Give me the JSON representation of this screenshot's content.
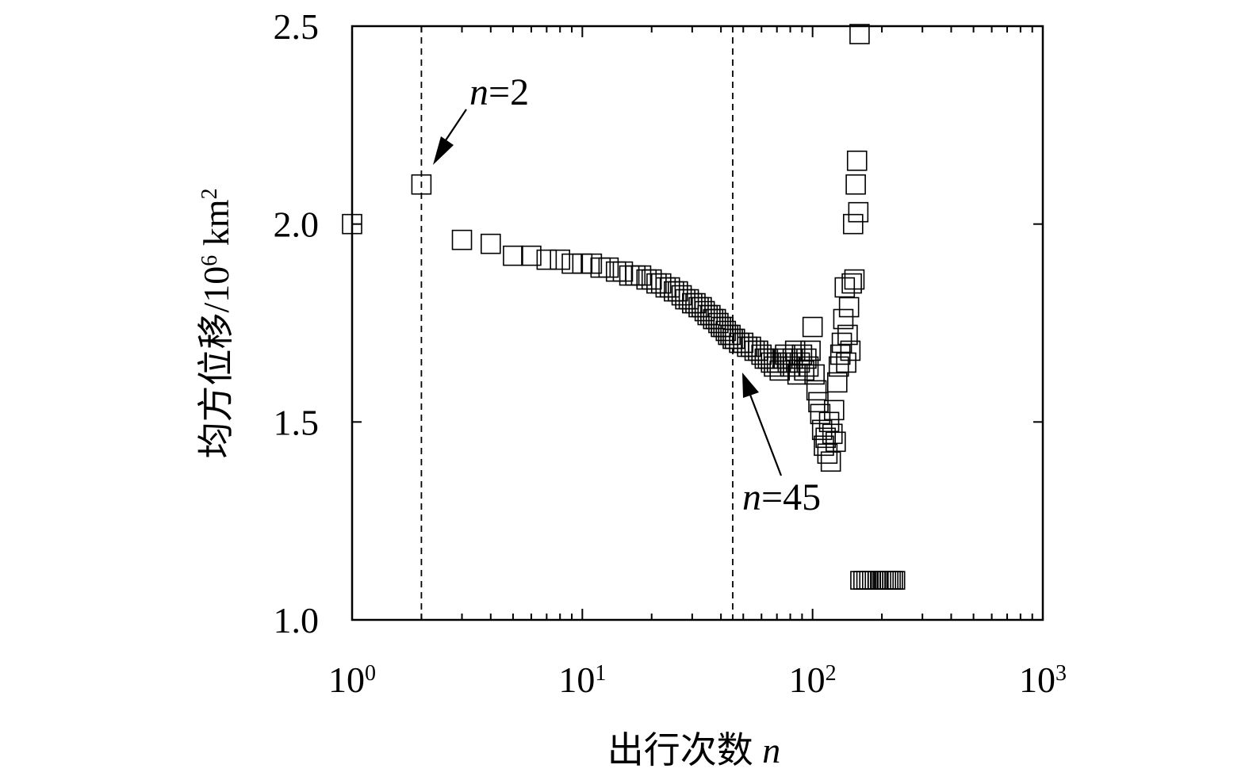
{
  "chart_data": {
    "type": "scatter",
    "xlabel_main": "出行次数 ",
    "xlabel_var": "n",
    "ylabel_main": "均方位移/10",
    "ylabel_exp": "6",
    "ylabel_unit": " km",
    "ylabel_unit_exp": "2",
    "x_scale": "log",
    "xlim": [
      1,
      1000
    ],
    "ylim": [
      1.0,
      2.5
    ],
    "x_ticks": [
      {
        "base": "10",
        "exp": "0",
        "value": 1
      },
      {
        "base": "10",
        "exp": "1",
        "value": 10
      },
      {
        "base": "10",
        "exp": "2",
        "value": 100
      },
      {
        "base": "10",
        "exp": "3",
        "value": 1000
      }
    ],
    "y_ticks": [
      {
        "label": "1.0",
        "value": 1.0
      },
      {
        "label": "1.5",
        "value": 1.5
      },
      {
        "label": "2.0",
        "value": 2.0
      },
      {
        "label": "2.5",
        "value": 2.5
      }
    ],
    "marker": "open-square",
    "grid": false,
    "reference_lines": [
      {
        "x": 2,
        "style": "dashed"
      },
      {
        "x": 45,
        "style": "dashed"
      }
    ],
    "annotations": [
      {
        "var": "n",
        "text": "=2",
        "x": 2,
        "y": 2.1
      },
      {
        "var": "n",
        "text": "=45",
        "x": 45,
        "y": 1.69
      }
    ],
    "points": [
      [
        1,
        2.0
      ],
      [
        2,
        2.1
      ],
      [
        3,
        1.96
      ],
      [
        4,
        1.95
      ],
      [
        5,
        1.92
      ],
      [
        6,
        1.92
      ],
      [
        7,
        1.91
      ],
      [
        8,
        1.91
      ],
      [
        9,
        1.9
      ],
      [
        10,
        1.9
      ],
      [
        11,
        1.9
      ],
      [
        12,
        1.89
      ],
      [
        13,
        1.89
      ],
      [
        14,
        1.88
      ],
      [
        15,
        1.88
      ],
      [
        16,
        1.87
      ],
      [
        17,
        1.87
      ],
      [
        18,
        1.87
      ],
      [
        19,
        1.86
      ],
      [
        20,
        1.86
      ],
      [
        21,
        1.85
      ],
      [
        22,
        1.85
      ],
      [
        23,
        1.84
      ],
      [
        24,
        1.84
      ],
      [
        25,
        1.83
      ],
      [
        26,
        1.83
      ],
      [
        27,
        1.82
      ],
      [
        28,
        1.81
      ],
      [
        29,
        1.81
      ],
      [
        30,
        1.8
      ],
      [
        31,
        1.8
      ],
      [
        32,
        1.79
      ],
      [
        33,
        1.79
      ],
      [
        34,
        1.78
      ],
      [
        35,
        1.77
      ],
      [
        36,
        1.77
      ],
      [
        37,
        1.76
      ],
      [
        38,
        1.76
      ],
      [
        39,
        1.75
      ],
      [
        40,
        1.74
      ],
      [
        41,
        1.74
      ],
      [
        42,
        1.73
      ],
      [
        43,
        1.72
      ],
      [
        44,
        1.72
      ],
      [
        45,
        1.71
      ],
      [
        46,
        1.71
      ],
      [
        48,
        1.7
      ],
      [
        50,
        1.7
      ],
      [
        52,
        1.69
      ],
      [
        54,
        1.69
      ],
      [
        56,
        1.68
      ],
      [
        58,
        1.68
      ],
      [
        60,
        1.67
      ],
      [
        62,
        1.66
      ],
      [
        64,
        1.66
      ],
      [
        66,
        1.65
      ],
      [
        68,
        1.64
      ],
      [
        70,
        1.65
      ],
      [
        72,
        1.63
      ],
      [
        74,
        1.66
      ],
      [
        76,
        1.67
      ],
      [
        78,
        1.65
      ],
      [
        80,
        1.64
      ],
      [
        82,
        1.66
      ],
      [
        84,
        1.68
      ],
      [
        86,
        1.62
      ],
      [
        88,
        1.65
      ],
      [
        90,
        1.67
      ],
      [
        92,
        1.63
      ],
      [
        94,
        1.66
      ],
      [
        96,
        1.64
      ],
      [
        98,
        1.68
      ],
      [
        100,
        1.74
      ],
      [
        102,
        1.62
      ],
      [
        104,
        1.58
      ],
      [
        106,
        1.55
      ],
      [
        108,
        1.52
      ],
      [
        110,
        1.48
      ],
      [
        112,
        1.44
      ],
      [
        114,
        1.46
      ],
      [
        116,
        1.42
      ],
      [
        118,
        1.5
      ],
      [
        120,
        1.4
      ],
      [
        122,
        1.47
      ],
      [
        124,
        1.53
      ],
      [
        126,
        1.45
      ],
      [
        128,
        1.6
      ],
      [
        130,
        1.64
      ],
      [
        132,
        1.67
      ],
      [
        134,
        1.7
      ],
      [
        136,
        1.76
      ],
      [
        138,
        1.84
      ],
      [
        140,
        1.65
      ],
      [
        142,
        1.72
      ],
      [
        144,
        1.79
      ],
      [
        146,
        1.68
      ],
      [
        148,
        1.85
      ],
      [
        150,
        2.0
      ],
      [
        152,
        1.86
      ],
      [
        154,
        2.1
      ],
      [
        156,
        2.16
      ],
      [
        158,
        2.03
      ],
      [
        160,
        2.48
      ],
      [
        160,
        1.1
      ],
      [
        165,
        1.1
      ],
      [
        170,
        1.1
      ],
      [
        175,
        1.1
      ],
      [
        180,
        1.1
      ],
      [
        185,
        1.1
      ],
      [
        190,
        1.1
      ],
      [
        195,
        1.1
      ],
      [
        200,
        1.1
      ],
      [
        205,
        1.1
      ],
      [
        210,
        1.1
      ],
      [
        215,
        1.1
      ],
      [
        220,
        1.1
      ],
      [
        225,
        1.1
      ],
      [
        230,
        1.1
      ]
    ]
  }
}
